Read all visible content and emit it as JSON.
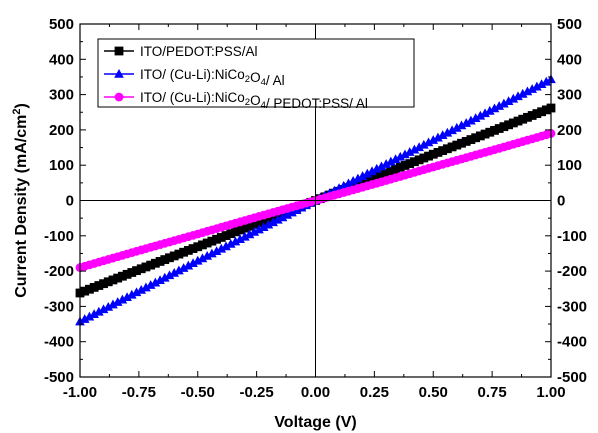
{
  "chart_data": {
    "type": "line",
    "xlabel": "Voltage (V)",
    "ylabel": "Current Density (mA/cm²)",
    "ylabel_parts": {
      "main": "Current Density (mA/cm",
      "sup": "2",
      "end": ")"
    },
    "xlim": [
      -1.0,
      1.0
    ],
    "ylim": [
      -500,
      500
    ],
    "x_ticks": [
      -1.0,
      -0.75,
      -0.5,
      -0.25,
      0.0,
      0.25,
      0.5,
      0.75,
      1.0
    ],
    "x_tick_labels": [
      "-1.00",
      "-0.75",
      "-0.50",
      "-0.25",
      "0.00",
      "0.25",
      "0.50",
      "0.75",
      "1.00"
    ],
    "y_ticks": [
      -500,
      -400,
      -300,
      -200,
      -100,
      0,
      100,
      200,
      300,
      400,
      500
    ],
    "y_tick_labels": [
      "-500",
      "-400",
      "-300",
      "-200",
      "-100",
      "0",
      "100",
      "200",
      "300",
      "400",
      "500"
    ],
    "grid": false,
    "legend_position": "top-left",
    "series": [
      {
        "name": "ITO/PEDOT:PSS/Al",
        "name_parts": [
          {
            "t": "ITO/PEDOT:PSS/Al"
          }
        ],
        "color": "#000000",
        "marker": "square",
        "x": [
          -1.0,
          -0.75,
          -0.5,
          -0.25,
          0.0,
          0.25,
          0.5,
          0.75,
          1.0
        ],
        "y": [
          -262,
          -196,
          -131,
          -65,
          0,
          65,
          131,
          196,
          262
        ]
      },
      {
        "name": "ITO/ (Cu-Li):NiCo2O4/ Al",
        "name_parts": [
          {
            "t": "ITO/ (Cu-Li):NiCo"
          },
          {
            "t": "2",
            "sub": true
          },
          {
            "t": "O"
          },
          {
            "t": "4",
            "sub": true
          },
          {
            "t": "/ Al"
          }
        ],
        "color": "#0000ff",
        "marker": "triangle",
        "x": [
          -1.0,
          -0.75,
          -0.5,
          -0.25,
          0.0,
          0.25,
          0.5,
          0.75,
          1.0
        ],
        "y": [
          -343,
          -257,
          -171,
          -86,
          0,
          86,
          171,
          257,
          343
        ]
      },
      {
        "name": "ITO/ (Cu-Li):NiCo2O4/ PEDOT:PSS/ Al",
        "name_parts": [
          {
            "t": "ITO/ (Cu-Li):NiCo"
          },
          {
            "t": "2",
            "sub": true
          },
          {
            "t": "O"
          },
          {
            "t": "4",
            "sub": true
          },
          {
            "t": "/ PEDOT:PSS/ Al"
          }
        ],
        "color": "#ff00ff",
        "marker": "circle",
        "x": [
          -1.0,
          -0.75,
          -0.5,
          -0.25,
          0.0,
          0.25,
          0.5,
          0.75,
          1.0
        ],
        "y": [
          -190,
          -142,
          -95,
          -47,
          0,
          47,
          95,
          142,
          190
        ]
      }
    ]
  }
}
